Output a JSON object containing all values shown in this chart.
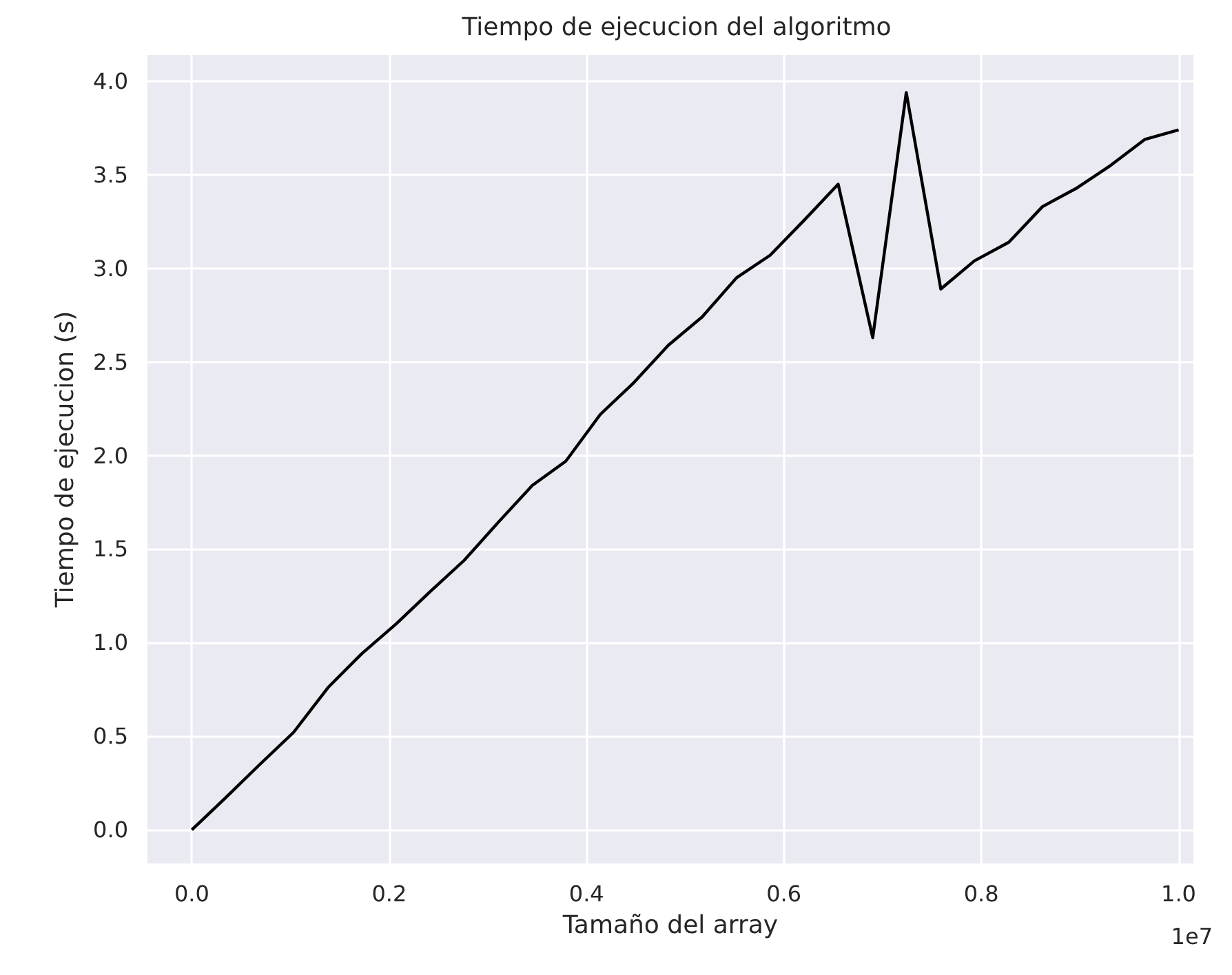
{
  "chart_data": {
    "type": "line",
    "title": "Tiempo de ejecucion del algoritmo",
    "xlabel": "Tamaño del array",
    "ylabel": "Tiempo de ejecucion (s)",
    "annotations": [
      "1e7"
    ],
    "x": [
      0,
      0.034,
      0.069,
      0.103,
      0.138,
      0.172,
      0.207,
      0.241,
      0.276,
      0.31,
      0.345,
      0.379,
      0.414,
      0.448,
      0.483,
      0.517,
      0.552,
      0.586,
      0.621,
      0.655,
      0.69,
      0.724,
      0.759,
      0.793,
      0.828,
      0.862,
      0.897,
      0.931,
      0.966,
      1.0
    ],
    "series": [
      {
        "color": "#000000",
        "values": [
          0,
          0.17,
          0.35,
          0.52,
          0.76,
          0.94,
          1.1,
          1.27,
          1.44,
          1.64,
          1.84,
          1.97,
          2.22,
          2.39,
          2.59,
          2.74,
          2.95,
          3.07,
          3.26,
          3.45,
          2.63,
          3.94,
          2.89,
          3.04,
          3.14,
          3.33,
          3.43,
          3.55,
          3.69,
          3.74
        ]
      }
    ],
    "xlim": [
      -0.045,
      1.015
    ],
    "xticks": [
      {
        "value": 0,
        "label": "0.0"
      },
      0.2,
      0.4,
      0.6,
      0.8,
      {
        "value": 1,
        "label": "1.0"
      }
    ],
    "ylim": [
      -0.18,
      4.14
    ],
    "yticks": [
      {
        "value": 0,
        "label": "0.0"
      },
      0.5,
      {
        "value": 1,
        "label": "1.0"
      },
      1.5,
      {
        "value": 2,
        "label": "2.0"
      },
      2.5,
      {
        "value": 3,
        "label": "3.0"
      },
      3.5,
      {
        "value": 4,
        "label": "4.0"
      }
    ],
    "grid": true,
    "marker": "none",
    "line_style": "solid"
  }
}
